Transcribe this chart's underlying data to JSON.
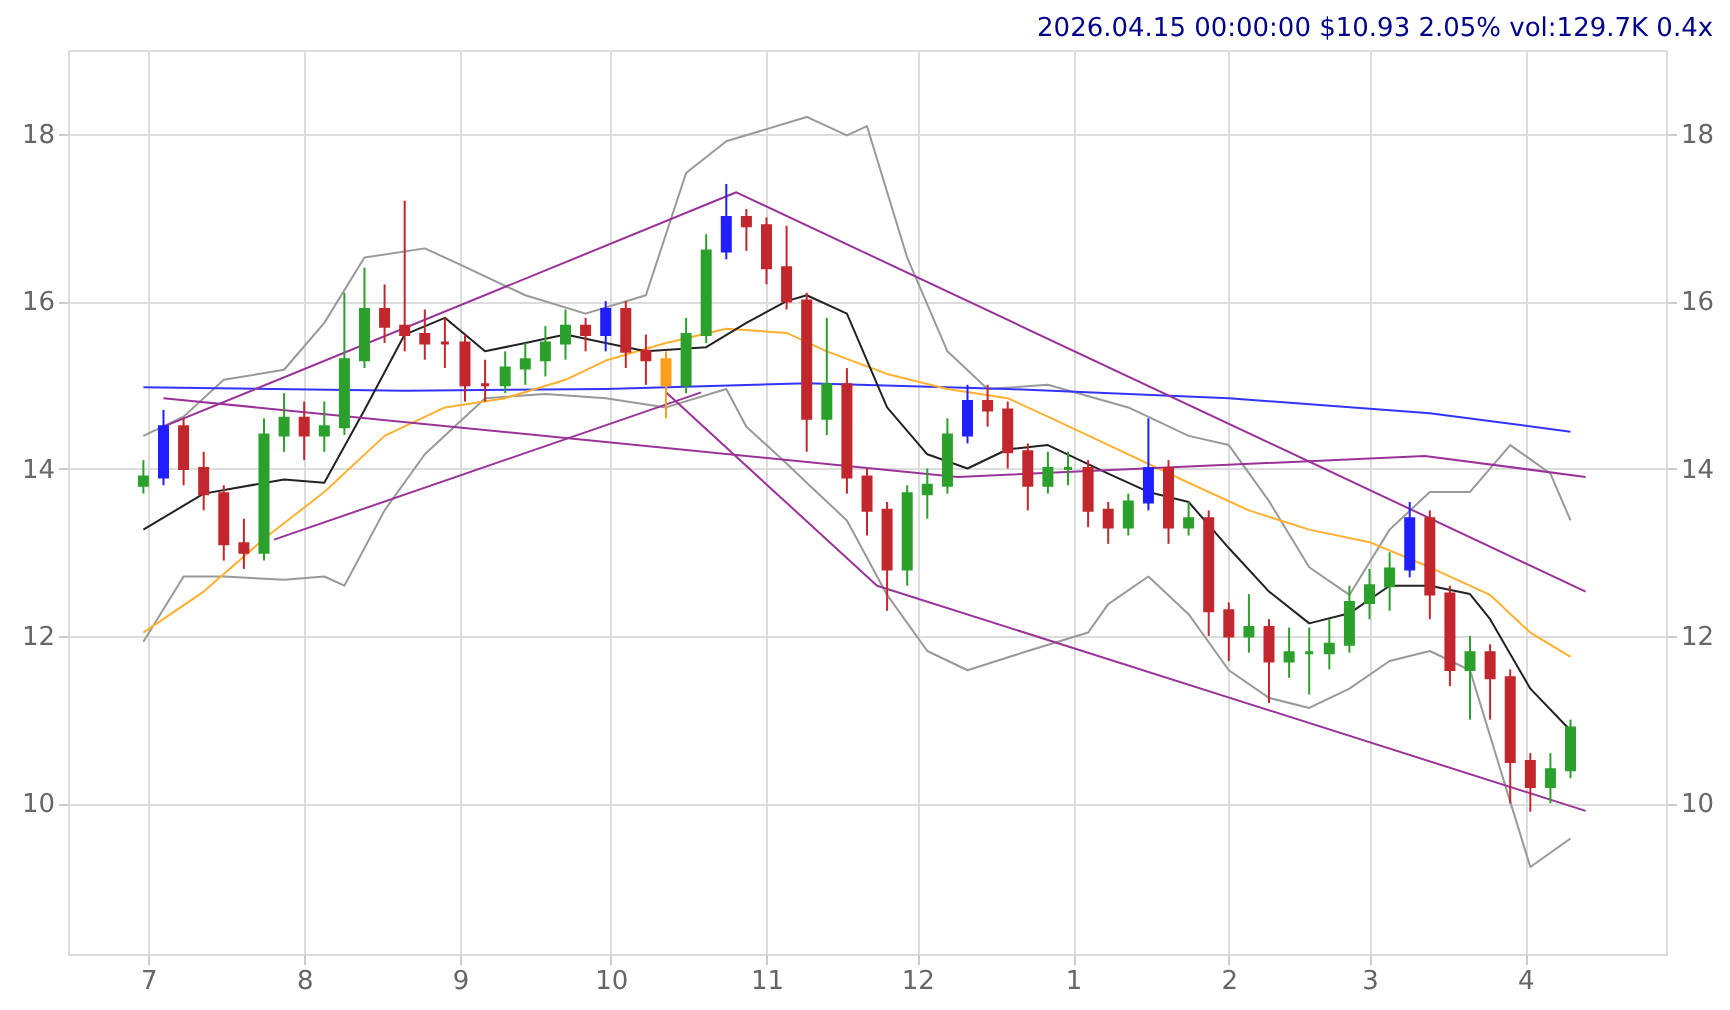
{
  "chart_data": {
    "type": "candlestick",
    "title": "2026.04.15 00:00:00 $10.93 2.05% vol:129.7K 0.4x",
    "x": [
      "2025-06-30",
      "2025-07-04",
      "2025-07-08",
      "2025-07-12",
      "2025-07-16",
      "2025-07-20",
      "2025-07-24",
      "2025-07-28",
      "2025-08-01",
      "2025-08-05",
      "2025-08-09",
      "2025-08-13",
      "2025-08-17",
      "2025-08-21",
      "2025-08-25",
      "2025-08-29",
      "2025-09-02",
      "2025-09-06",
      "2025-09-10",
      "2025-09-14",
      "2025-09-18",
      "2025-09-22",
      "2025-09-26",
      "2025-09-30",
      "2025-10-04",
      "2025-10-08",
      "2025-10-12",
      "2025-10-16",
      "2025-10-20",
      "2025-10-24",
      "2025-10-28",
      "2025-11-01",
      "2025-11-05",
      "2025-11-09",
      "2025-11-13",
      "2025-11-17",
      "2025-11-21",
      "2025-11-25",
      "2025-11-29",
      "2025-12-03",
      "2025-12-07",
      "2025-12-11",
      "2025-12-15",
      "2025-12-19",
      "2025-12-23",
      "2025-12-27",
      "2025-12-31",
      "2026-01-04",
      "2026-01-08",
      "2026-01-12",
      "2026-01-16",
      "2026-01-20",
      "2026-01-24",
      "2026-01-28",
      "2026-02-01",
      "2026-02-05",
      "2026-02-09",
      "2026-02-13",
      "2026-02-17",
      "2026-02-21",
      "2026-02-25",
      "2026-03-01",
      "2026-03-05",
      "2026-03-09",
      "2026-03-13",
      "2026-03-17",
      "2026-03-21",
      "2026-03-25",
      "2026-03-29",
      "2026-04-02",
      "2026-04-06",
      "2026-04-10"
    ],
    "ohlc": [
      [
        13.8,
        14.1,
        13.7,
        13.9
      ],
      [
        13.9,
        14.7,
        13.8,
        14.5
      ],
      [
        14.5,
        14.6,
        13.8,
        14.0
      ],
      [
        14.0,
        14.2,
        13.5,
        13.7
      ],
      [
        13.7,
        13.8,
        12.9,
        13.1
      ],
      [
        13.1,
        13.4,
        12.8,
        13.0
      ],
      [
        13.0,
        14.6,
        12.9,
        14.4
      ],
      [
        14.4,
        14.9,
        14.2,
        14.6
      ],
      [
        14.6,
        14.8,
        14.1,
        14.4
      ],
      [
        14.4,
        14.8,
        14.2,
        14.5
      ],
      [
        14.5,
        16.1,
        14.4,
        15.3
      ],
      [
        15.3,
        16.4,
        15.2,
        15.9
      ],
      [
        15.9,
        16.2,
        15.5,
        15.7
      ],
      [
        15.7,
        17.2,
        15.4,
        15.6
      ],
      [
        15.6,
        15.9,
        15.3,
        15.5
      ],
      [
        15.5,
        15.8,
        15.2,
        15.5
      ],
      [
        15.5,
        15.6,
        14.8,
        15.0
      ],
      [
        15.0,
        15.3,
        14.8,
        15.0
      ],
      [
        15.0,
        15.4,
        14.9,
        15.2
      ],
      [
        15.2,
        15.5,
        15.0,
        15.3
      ],
      [
        15.3,
        15.7,
        15.1,
        15.5
      ],
      [
        15.5,
        15.9,
        15.3,
        15.7
      ],
      [
        15.7,
        15.8,
        15.4,
        15.6
      ],
      [
        15.6,
        16.0,
        15.4,
        15.9
      ],
      [
        15.9,
        16.0,
        15.2,
        15.4
      ],
      [
        15.4,
        15.6,
        15.0,
        15.3
      ],
      [
        15.3,
        15.4,
        14.6,
        15.0
      ],
      [
        15.0,
        15.8,
        14.9,
        15.6
      ],
      [
        15.6,
        16.8,
        15.5,
        16.6
      ],
      [
        16.6,
        17.4,
        16.5,
        17.0
      ],
      [
        17.0,
        17.1,
        16.6,
        16.9
      ],
      [
        16.9,
        17.0,
        16.2,
        16.4
      ],
      [
        16.4,
        16.9,
        15.9,
        16.0
      ],
      [
        16.0,
        16.1,
        14.2,
        14.6
      ],
      [
        14.6,
        15.8,
        14.4,
        15.0
      ],
      [
        15.0,
        15.2,
        13.7,
        13.9
      ],
      [
        13.9,
        14.0,
        13.2,
        13.5
      ],
      [
        13.5,
        13.6,
        12.3,
        12.8
      ],
      [
        12.8,
        13.8,
        12.6,
        13.7
      ],
      [
        13.7,
        14.0,
        13.4,
        13.8
      ],
      [
        13.8,
        14.6,
        13.7,
        14.4
      ],
      [
        14.4,
        15.0,
        14.3,
        14.8
      ],
      [
        14.8,
        15.0,
        14.5,
        14.7
      ],
      [
        14.7,
        14.8,
        14.0,
        14.2
      ],
      [
        14.2,
        14.3,
        13.5,
        13.8
      ],
      [
        13.8,
        14.2,
        13.7,
        14.0
      ],
      [
        14.0,
        14.2,
        13.8,
        14.0
      ],
      [
        14.0,
        14.1,
        13.3,
        13.5
      ],
      [
        13.5,
        13.6,
        13.1,
        13.3
      ],
      [
        13.3,
        13.7,
        13.2,
        13.6
      ],
      [
        13.6,
        14.6,
        13.5,
        14.0
      ],
      [
        14.0,
        14.1,
        13.1,
        13.3
      ],
      [
        13.3,
        13.6,
        13.2,
        13.4
      ],
      [
        13.4,
        13.5,
        12.0,
        12.3
      ],
      [
        12.3,
        12.4,
        11.7,
        12.0
      ],
      [
        12.0,
        12.5,
        11.8,
        12.1
      ],
      [
        12.1,
        12.2,
        11.2,
        11.7
      ],
      [
        11.7,
        12.1,
        11.5,
        11.8
      ],
      [
        11.8,
        12.1,
        11.3,
        11.8
      ],
      [
        11.8,
        12.2,
        11.6,
        11.9
      ],
      [
        11.9,
        12.6,
        11.8,
        12.4
      ],
      [
        12.4,
        12.8,
        12.2,
        12.6
      ],
      [
        12.6,
        13.0,
        12.3,
        12.8
      ],
      [
        12.8,
        13.6,
        12.7,
        13.4
      ],
      [
        13.4,
        13.5,
        12.2,
        12.5
      ],
      [
        12.5,
        12.6,
        11.4,
        11.6
      ],
      [
        11.6,
        12.0,
        11.0,
        11.8
      ],
      [
        11.8,
        11.9,
        11.0,
        11.5
      ],
      [
        11.5,
        11.6,
        10.0,
        10.5
      ],
      [
        10.5,
        10.6,
        9.9,
        10.2
      ],
      [
        10.2,
        10.6,
        10.0,
        10.4
      ],
      [
        10.4,
        11.0,
        10.3,
        10.9
      ]
    ],
    "colors": [
      "#2ca02c",
      "#1f1fff",
      "#c1272d",
      "#c1272d",
      "#c1272d",
      "#c1272d",
      "#2ca02c",
      "#2ca02c",
      "#c1272d",
      "#2ca02c",
      "#2ca02c",
      "#2ca02c",
      "#c1272d",
      "#c1272d",
      "#c1272d",
      "#c1272d",
      "#c1272d",
      "#c1272d",
      "#2ca02c",
      "#2ca02c",
      "#2ca02c",
      "#2ca02c",
      "#c1272d",
      "#1f1fff",
      "#c1272d",
      "#c1272d",
      "#ff9f1c",
      "#2ca02c",
      "#2ca02c",
      "#1f1fff",
      "#c1272d",
      "#c1272d",
      "#c1272d",
      "#c1272d",
      "#2ca02c",
      "#c1272d",
      "#c1272d",
      "#c1272d",
      "#2ca02c",
      "#2ca02c",
      "#2ca02c",
      "#1f1fff",
      "#c1272d",
      "#c1272d",
      "#c1272d",
      "#2ca02c",
      "#2ca02c",
      "#c1272d",
      "#c1272d",
      "#2ca02c",
      "#1f1fff",
      "#c1272d",
      "#2ca02c",
      "#c1272d",
      "#c1272d",
      "#2ca02c",
      "#c1272d",
      "#2ca02c",
      "#2ca02c",
      "#2ca02c",
      "#2ca02c",
      "#2ca02c",
      "#2ca02c",
      "#1f1fff",
      "#c1272d",
      "#c1272d",
      "#2ca02c",
      "#c1272d",
      "#c1272d",
      "#c1272d",
      "#2ca02c",
      "#2ca02c"
    ],
    "series": [
      {
        "type": "line",
        "color": "#999999",
        "x": [
          "2025-06-30",
          "2025-07-08",
          "2025-07-16",
          "2025-07-28",
          "2025-08-05",
          "2025-08-13",
          "2025-08-25",
          "2025-09-02",
          "2025-09-14",
          "2025-09-26",
          "2025-10-08",
          "2025-10-16",
          "2025-10-24",
          "2025-11-09",
          "2025-11-17",
          "2025-11-21",
          "2025-11-29",
          "2025-12-07",
          "2025-12-15",
          "2025-12-27",
          "2026-01-12",
          "2026-01-24",
          "2026-02-01",
          "2026-02-09",
          "2026-02-17",
          "2026-02-25",
          "2026-03-05",
          "2026-03-13",
          "2026-03-21",
          "2026-03-29",
          "2026-04-06",
          "2026-04-10"
        ],
        "values": [
          14.39,
          14.62,
          15.06,
          15.18,
          15.74,
          16.52,
          16.63,
          16.41,
          16.07,
          15.85,
          16.07,
          17.53,
          17.91,
          18.2,
          17.98,
          18.09,
          16.52,
          15.4,
          14.95,
          15.0,
          14.73,
          14.39,
          14.28,
          13.61,
          12.82,
          12.49,
          13.27,
          13.72,
          13.72,
          14.28,
          13.94,
          13.38
        ]
      },
      {
        "type": "line",
        "color": "#999999",
        "x": [
          "2025-06-30",
          "2025-07-08",
          "2025-07-16",
          "2025-07-28",
          "2025-08-05",
          "2025-08-09",
          "2025-08-17",
          "2025-08-25",
          "2025-09-06",
          "2025-09-18",
          "2025-09-30",
          "2025-10-12",
          "2025-10-24",
          "2025-10-28",
          "2025-11-05",
          "2025-11-09",
          "2025-11-17",
          "2025-11-25",
          "2025-12-03",
          "2025-12-11",
          "2025-12-23",
          "2026-01-04",
          "2026-01-08",
          "2026-01-16",
          "2026-01-24",
          "2026-02-01",
          "2026-02-09",
          "2026-02-17",
          "2026-02-25",
          "2026-03-05",
          "2026-03-13",
          "2026-03-21",
          "2026-03-29",
          "2026-04-02",
          "2026-04-10"
        ],
        "values": [
          11.93,
          12.71,
          12.71,
          12.67,
          12.71,
          12.6,
          13.5,
          14.17,
          14.84,
          14.89,
          14.84,
          14.73,
          14.95,
          14.5,
          14.06,
          13.83,
          13.38,
          12.49,
          11.82,
          11.59,
          11.82,
          12.04,
          12.38,
          12.71,
          12.26,
          11.59,
          11.26,
          11.14,
          11.37,
          11.7,
          11.82,
          11.59,
          10.02,
          9.24,
          9.58
        ]
      },
      {
        "type": "line",
        "color": "#3333ff",
        "x": [
          "2025-06-30",
          "2025-08-21",
          "2025-09-30",
          "2025-11-09",
          "2025-12-19",
          "2026-02-01",
          "2026-03-13",
          "2026-04-10"
        ],
        "values": [
          14.97,
          14.93,
          14.95,
          15.02,
          14.95,
          14.84,
          14.66,
          14.44
        ]
      },
      {
        "type": "line",
        "color": "#ffb030",
        "x": [
          "2025-06-30",
          "2025-07-12",
          "2025-07-24",
          "2025-08-05",
          "2025-08-17",
          "2025-08-29",
          "2025-09-10",
          "2025-09-22",
          "2025-09-30",
          "2025-10-12",
          "2025-10-24",
          "2025-11-05",
          "2025-11-13",
          "2025-11-25",
          "2025-12-07",
          "2025-12-19",
          "2025-12-27",
          "2026-01-12",
          "2026-01-24",
          "2026-02-05",
          "2026-02-17",
          "2026-03-01",
          "2026-03-13",
          "2026-03-25",
          "2026-04-02",
          "2026-04-10"
        ],
        "values": [
          12.04,
          12.53,
          13.16,
          13.72,
          14.39,
          14.73,
          14.84,
          15.06,
          15.29,
          15.5,
          15.67,
          15.62,
          15.4,
          15.13,
          14.95,
          14.84,
          14.62,
          14.17,
          13.83,
          13.5,
          13.27,
          13.12,
          12.82,
          12.49,
          12.04,
          11.75
        ]
      },
      {
        "type": "line",
        "color": "#222222",
        "x": [
          "2025-06-30",
          "2025-07-12",
          "2025-07-28",
          "2025-08-05",
          "2025-08-13",
          "2025-08-21",
          "2025-08-29",
          "2025-09-06",
          "2025-09-14",
          "2025-09-22",
          "2025-09-30",
          "2025-10-08",
          "2025-10-20",
          "2025-10-28",
          "2025-11-05",
          "2025-11-09",
          "2025-11-17",
          "2025-11-25",
          "2025-12-03",
          "2025-12-11",
          "2025-12-19",
          "2025-12-27",
          "2026-01-08",
          "2026-01-16",
          "2026-01-24",
          "2026-02-01",
          "2026-02-09",
          "2026-02-17",
          "2026-02-25",
          "2026-03-05",
          "2026-03-13",
          "2026-03-21",
          "2026-03-25",
          "2026-04-02",
          "2026-04-10"
        ],
        "values": [
          13.27,
          13.7,
          13.87,
          13.83,
          14.7,
          15.6,
          15.8,
          15.4,
          15.5,
          15.6,
          15.5,
          15.4,
          15.45,
          15.74,
          16.0,
          16.07,
          15.85,
          14.73,
          14.17,
          14.0,
          14.23,
          14.28,
          13.94,
          13.72,
          13.6,
          13.05,
          12.53,
          12.15,
          12.27,
          12.6,
          12.6,
          12.5,
          12.2,
          11.37,
          10.87
        ]
      },
      {
        "type": "line",
        "color": "#993399",
        "x": [
          "2025-07-04",
          "2025-10-26",
          "2026-04-13"
        ],
        "values": [
          14.5,
          17.3,
          12.53
        ]
      },
      {
        "type": "line",
        "color": "#993399",
        "x": [
          "2025-07-26",
          "2025-10-19"
        ],
        "values": [
          13.15,
          14.91
        ]
      },
      {
        "type": "line",
        "color": "#993399",
        "x": [
          "2025-10-12",
          "2025-11-23",
          "2026-04-13"
        ],
        "values": [
          14.91,
          12.6,
          9.91
        ]
      },
      {
        "type": "line",
        "color": "#993399",
        "x": [
          "2025-07-04",
          "2025-12-09",
          "2026-03-12",
          "2026-04-13"
        ],
        "values": [
          14.84,
          13.9,
          14.15,
          13.9
        ]
      }
    ],
    "xlim": [
      "2025-06-15",
      "2026-04-29"
    ],
    "xticks": [
      {
        "value": "2025-07-01",
        "label": "7"
      },
      {
        "value": "2025-08-01",
        "label": "8"
      },
      {
        "value": "2025-09-01",
        "label": "9"
      },
      {
        "value": "2025-10-01",
        "label": "10"
      },
      {
        "value": "2025-11-01",
        "label": "11"
      },
      {
        "value": "2025-12-01",
        "label": "12"
      },
      {
        "value": "2026-01-01",
        "label": "1"
      },
      {
        "value": "2026-02-01",
        "label": "2"
      },
      {
        "value": "2026-03-01",
        "label": "3"
      },
      {
        "value": "2026-04-01",
        "label": "4"
      }
    ],
    "ylim": [
      8.2,
      19.0
    ],
    "yticks": [
      10,
      12,
      14,
      16,
      18
    ],
    "y2lim": [
      8.2,
      19.0
    ],
    "y2ticks": [
      10,
      12,
      14,
      16,
      18
    ],
    "grid": true
  }
}
